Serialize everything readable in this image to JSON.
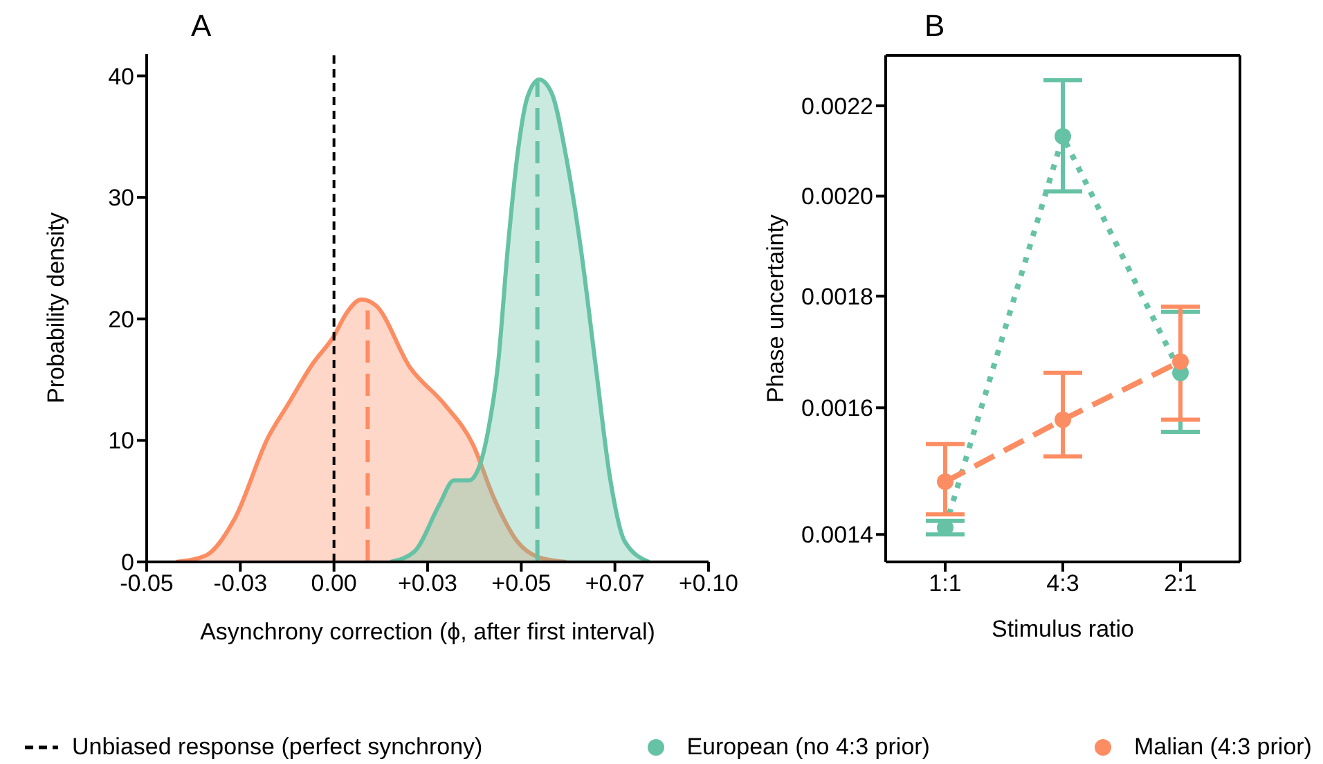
{
  "chart_data": [
    {
      "type": "area",
      "title": "A",
      "xlabel": "Asynchrony correction (ϕ, after first interval)",
      "ylabel": "Probability density",
      "xlim": [
        -0.05,
        0.1
      ],
      "xticks": [
        -0.05,
        {
          "value": -0.025,
          "label": "-0.03"
        },
        {
          "value": 0,
          "label": "0.00"
        },
        {
          "value": 0.025,
          "label": "+0.03"
        },
        {
          "value": 0.05,
          "label": "+0.05"
        },
        {
          "value": 0.075,
          "label": "+0.07"
        },
        {
          "value": 0.1,
          "label": "+0.10"
        }
      ],
      "ylim": [
        0,
        41.8
      ],
      "yticks": [
        0,
        10,
        20,
        30,
        40
      ],
      "grid": false,
      "legend": "bottom",
      "ref_lines": [
        {
          "axis": "x",
          "value": 0,
          "label": "Unbiased response (perfect synchrony)",
          "color": "#000000",
          "line_style": "dashed"
        }
      ],
      "series": [
        {
          "color": "#fc8d62",
          "x": [
            -0.0422,
            -0.0344,
            -0.0266,
            -0.0175,
            -0.0122,
            -0.0057,
            0.0,
            0.0034,
            0.0073,
            0.0112,
            0.0203,
            0.0294,
            0.0372,
            0.0425,
            0.0489,
            0.0555,
            0.062
          ],
          "values": [
            0.0,
            0.5,
            3.5,
            10.3,
            13.0,
            16.3,
            18.6,
            20.5,
            21.6,
            21.1,
            16.0,
            13.0,
            9.6,
            5.4,
            1.7,
            0.3,
            0.0
          ]
        },
        {
          "color": "#66c2a5",
          "x": [
            0.0151,
            0.0216,
            0.0281,
            0.032,
            0.0359,
            0.0386,
            0.0411,
            0.0438,
            0.0464,
            0.0489,
            0.0516,
            0.0548,
            0.0581,
            0.062,
            0.0659,
            0.0698,
            0.0737,
            0.0776,
            0.0841
          ],
          "values": [
            0.0,
            0.9,
            4.7,
            6.7,
            6.7,
            7.7,
            10.7,
            16.3,
            25.8,
            33.3,
            38.2,
            39.7,
            38.6,
            33.3,
            25.8,
            16.3,
            6.9,
            1.7,
            0.0
          ]
        },
        {
          "type": "line",
          "line_style": "dashed",
          "color": "#fc8d62",
          "x": [
            0.009,
            0.009
          ],
          "values": [
            0,
            20.7
          ]
        },
        {
          "type": "line",
          "line_style": "dashed",
          "color": "#66c2a5",
          "x": [
            0.0543,
            0.0543
          ],
          "values": [
            0,
            39.5
          ]
        }
      ]
    },
    {
      "type": "line",
      "title": "B",
      "xlabel": "Stimulus ratio",
      "ylabel": "Phase uncertainty",
      "categories": [
        "1:1",
        "4:3",
        "2:1"
      ],
      "log": "y",
      "ylim": [
        0.00136,
        0.00232
      ],
      "yticks": [
        0.0014,
        0.0016,
        0.0018,
        {
          "value": 0.002,
          "label": "0.0020"
        },
        0.0022
      ],
      "grid": false,
      "legend": "bottom",
      "marker": "circle",
      "series": [
        {
          "name": "European (no 4:3 prior)",
          "color": "#66c2a5",
          "line_style": "dotted",
          "values": [
            0.00141,
            0.00213,
            0.00166
          ],
          "errors": [
            [
              0.0014,
              0.00142
            ],
            [
              0.00201,
              0.00226
            ],
            [
              0.00156,
              0.00177
            ]
          ]
        },
        {
          "name": "Malian (4:3 prior)",
          "color": "#fc8d62",
          "line_style": "dashed",
          "values": [
            0.00148,
            0.00158,
            0.00168
          ],
          "errors": [
            [
              0.00143,
              0.00154
            ],
            [
              0.00152,
              0.00166
            ],
            [
              0.00158,
              0.00178
            ]
          ]
        }
      ]
    }
  ]
}
